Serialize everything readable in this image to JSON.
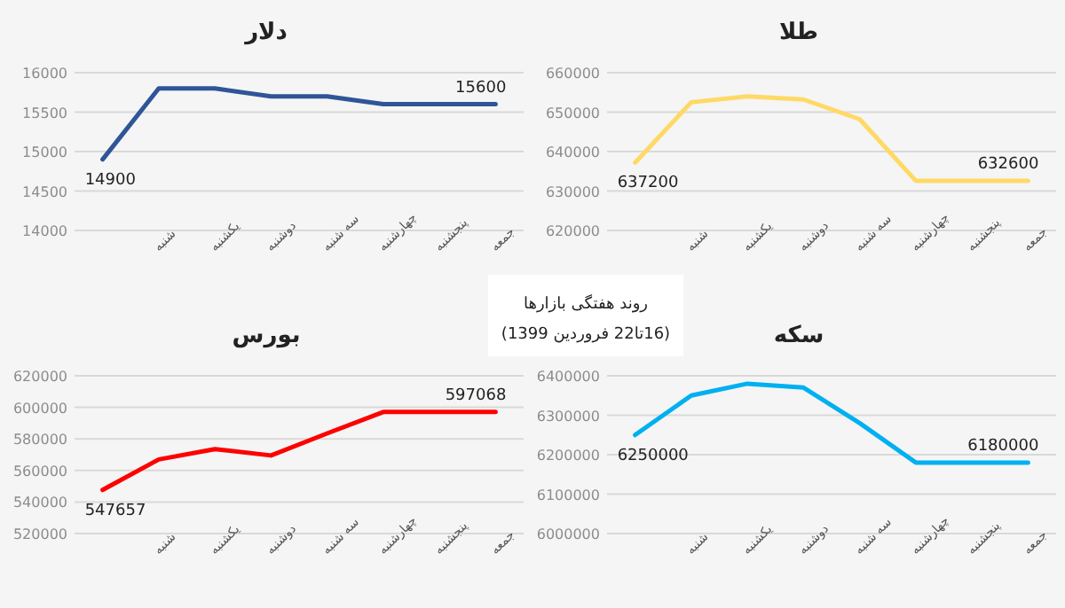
{
  "chart_data": [
    {
      "type": "line",
      "title": "دلار",
      "categories": [
        null,
        "شنبه",
        "یکشنبه",
        "دوشنبه",
        "سه شنبه",
        "چهارشنبه",
        "پنجشنبه",
        "جمعه"
      ],
      "series": [
        {
          "color": "#2f5597",
          "values": [
            14900,
            15800,
            15800,
            15700,
            15700,
            15600,
            15600,
            15600
          ],
          "value_labels": [
            "14900",
            null,
            null,
            null,
            null,
            null,
            null,
            "15600"
          ]
        }
      ],
      "ylim": [
        14000,
        16000
      ],
      "yticks": [
        14000,
        14500,
        15000,
        15500,
        16000
      ],
      "grid": "y"
    },
    {
      "type": "line",
      "title": "طلا",
      "categories": [
        null,
        "شنبه",
        "یکشنبه",
        "دوشنبه",
        "سه شنبه",
        "چهارشنبه",
        "پنجشنبه",
        "جمعه"
      ],
      "series": [
        {
          "color": "#ffd966",
          "values": [
            637200,
            652500,
            654000,
            653200,
            648200,
            632600,
            632600,
            632600
          ],
          "value_labels": [
            "637200",
            null,
            null,
            null,
            null,
            null,
            null,
            "632600"
          ]
        }
      ],
      "ylim": [
        620000,
        660000
      ],
      "yticks": [
        620000,
        630000,
        640000,
        650000,
        660000
      ],
      "grid": "y"
    },
    {
      "type": "other",
      "annotations": [
        "روند هفتگی بازارها",
        "(16تا22 فروردین 1399)"
      ]
    },
    {
      "type": "line",
      "title": "بورس",
      "categories": [
        null,
        "شنبه",
        "یکشنبه",
        "دوشنبه",
        "سه شنبه",
        "چهارشنبه",
        "پنجشنبه",
        "جمعه"
      ],
      "series": [
        {
          "color": "#ff0000",
          "values": [
            547657,
            567000,
            573500,
            569500,
            583500,
            597068,
            597068,
            597068
          ],
          "value_labels": [
            "547657",
            null,
            null,
            null,
            null,
            null,
            null,
            "597068"
          ]
        }
      ],
      "ylim": [
        520000,
        620000
      ],
      "yticks": [
        520000,
        540000,
        560000,
        580000,
        600000,
        620000
      ],
      "grid": "y"
    },
    {
      "type": "line",
      "title": "سکه",
      "categories": [
        null,
        "شنبه",
        "یکشنبه",
        "دوشنبه",
        "سه شنبه",
        "چهارشنبه",
        "پنجشنبه",
        "جمعه"
      ],
      "series": [
        {
          "color": "#00b0f0",
          "values": [
            6250000,
            6350000,
            6380000,
            6370000,
            6280000,
            6180000,
            6180000,
            6180000
          ],
          "value_labels": [
            "6250000",
            null,
            null,
            null,
            null,
            null,
            null,
            "6180000"
          ]
        }
      ],
      "ylim": [
        6000000,
        6400000
      ],
      "yticks": [
        6000000,
        6100000,
        6200000,
        6300000,
        6400000
      ],
      "grid": "y"
    }
  ]
}
